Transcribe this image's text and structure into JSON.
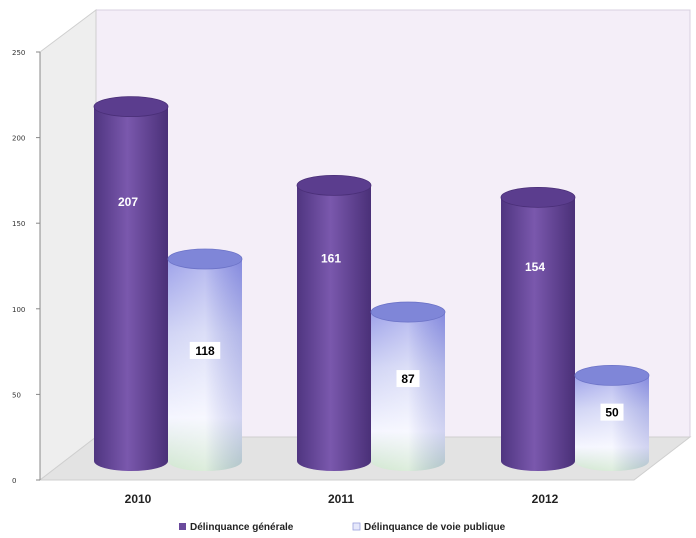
{
  "chart_data": {
    "type": "bar",
    "categories": [
      "2010",
      "2011",
      "2012"
    ],
    "series": [
      {
        "name": "Délinquance générale",
        "values": [
          207,
          161,
          154
        ],
        "color": "#6a4a9c"
      },
      {
        "name": "Délinquance de voie publique",
        "values": [
          118,
          87,
          50
        ],
        "color": "#c8cdf0"
      }
    ],
    "data_labels": [
      [
        "207",
        "161",
        "154"
      ],
      [
        "118",
        "87",
        "50"
      ]
    ],
    "yticks": [
      0,
      50,
      100,
      150,
      200,
      250
    ],
    "ylim": [
      0,
      250
    ],
    "grid": false,
    "legend_position": "bottom",
    "style": "3d-cylinder",
    "colors": {
      "wall": "#f4eef8",
      "floor": "#e3e3e3",
      "wall_edge": "#cfcfcf"
    }
  }
}
